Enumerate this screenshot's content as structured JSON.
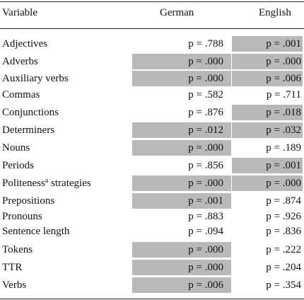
{
  "table": {
    "header": [
      "Variable",
      "German",
      "English"
    ],
    "rows": [
      [
        {
          "text": "Adjectives"
        },
        "p = .788",
        "p = .001"
      ],
      [
        {
          "text": "Adverbs"
        },
        "p = .000",
        "p = .000"
      ],
      [
        {
          "text": "Auxiliary verbs"
        },
        "p = .000",
        "p = .006"
      ],
      [
        {
          "text": "Commas"
        },
        "p = .582",
        "p = .711"
      ],
      [
        {
          "text": "Conjunctions"
        },
        "p = .876",
        "p = .018"
      ],
      [
        {
          "text": "Determiners"
        },
        "p = .012",
        "p = .032"
      ],
      [
        {
          "text": "Nouns"
        },
        "p = .000",
        "p = .189"
      ],
      [
        {
          "text": "Periods"
        },
        "p = .856",
        "p = .001"
      ],
      [
        {
          "text": "Politeness",
          "sup": "a",
          "rest": " strategies"
        },
        "p = .000",
        "p = .000"
      ],
      [
        {
          "text": "Prepositions"
        },
        "p = .001",
        "p = .874"
      ],
      [
        {
          "text": "Pronouns"
        },
        "p = .883",
        "p = .926"
      ],
      [
        {
          "text": "Sentence length"
        },
        "p = .094",
        "p = .836"
      ],
      [
        {
          "text": "Tokens"
        },
        "p = .000",
        "p = .222"
      ],
      [
        {
          "text": "TTR"
        },
        "p = .000",
        "p = .204"
      ],
      [
        {
          "text": "Verbs"
        },
        "p = .006",
        "p = .354"
      ]
    ]
  }
}
